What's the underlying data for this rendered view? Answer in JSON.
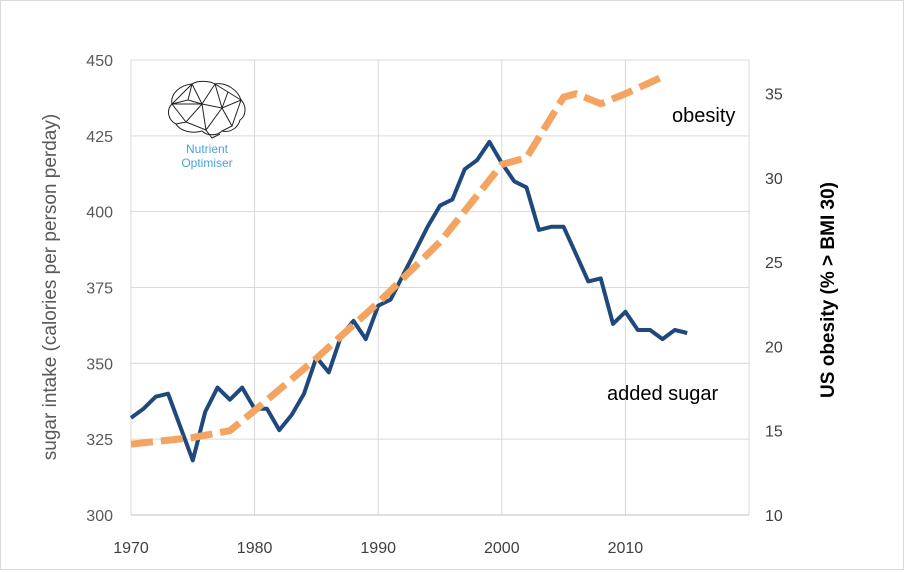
{
  "chart_data": {
    "type": "line",
    "title": "",
    "xlabel": "",
    "ylabel": "sugar intake (calories per person perday)",
    "y2label": "US obesity (% > BMI 30)",
    "xlim": [
      1970,
      2020
    ],
    "ylim": [
      300,
      450
    ],
    "y2lim": [
      10,
      37
    ],
    "x_ticks": [
      1970,
      1980,
      1990,
      2000,
      2010
    ],
    "y_ticks": [
      300,
      325,
      350,
      375,
      400,
      425,
      450
    ],
    "y2_ticks": [
      10,
      15,
      20,
      25,
      30,
      35
    ],
    "grid": true,
    "series": [
      {
        "name": "added sugar",
        "axis": "left",
        "color": "#1f497d",
        "style": "solid",
        "x": [
          1970,
          1971,
          1972,
          1973,
          1974,
          1975,
          1976,
          1977,
          1978,
          1979,
          1980,
          1981,
          1982,
          1983,
          1984,
          1985,
          1986,
          1987,
          1988,
          1989,
          1990,
          1991,
          1992,
          1993,
          1994,
          1995,
          1996,
          1997,
          1998,
          1999,
          2000,
          2001,
          2002,
          2003,
          2004,
          2005,
          2006,
          2007,
          2008,
          2009,
          2010,
          2011,
          2012,
          2013,
          2014,
          2015
        ],
        "values": [
          332,
          335,
          339,
          340,
          329,
          318,
          334,
          342,
          338,
          342,
          335,
          335,
          328,
          333,
          340,
          352,
          347,
          359,
          364,
          358,
          369,
          371,
          379,
          387,
          395,
          402,
          404,
          414,
          417,
          423,
          416,
          410,
          408,
          394,
          395,
          395,
          386,
          377,
          378,
          363,
          367,
          361,
          361,
          358,
          361,
          360
        ]
      },
      {
        "name": "obesity",
        "axis": "right",
        "color": "#f4a460",
        "style": "dashed",
        "x": [
          1970,
          1975,
          1978,
          1980,
          1985,
          1990,
          1995,
          2000,
          2002,
          2005,
          2006,
          2008,
          2010,
          2013
        ],
        "values": [
          14.2,
          14.6,
          15.0,
          16.2,
          19.3,
          22.6,
          26.2,
          30.8,
          31.2,
          34.8,
          35.0,
          34.4,
          35.0,
          36.0
        ]
      }
    ],
    "annotations": [
      "obesity",
      "added sugar"
    ]
  },
  "logo": {
    "name": "Nutrient Optimiser",
    "line1": "Nutrient",
    "line2": "Optimiser",
    "color": "#4ba3d6"
  }
}
